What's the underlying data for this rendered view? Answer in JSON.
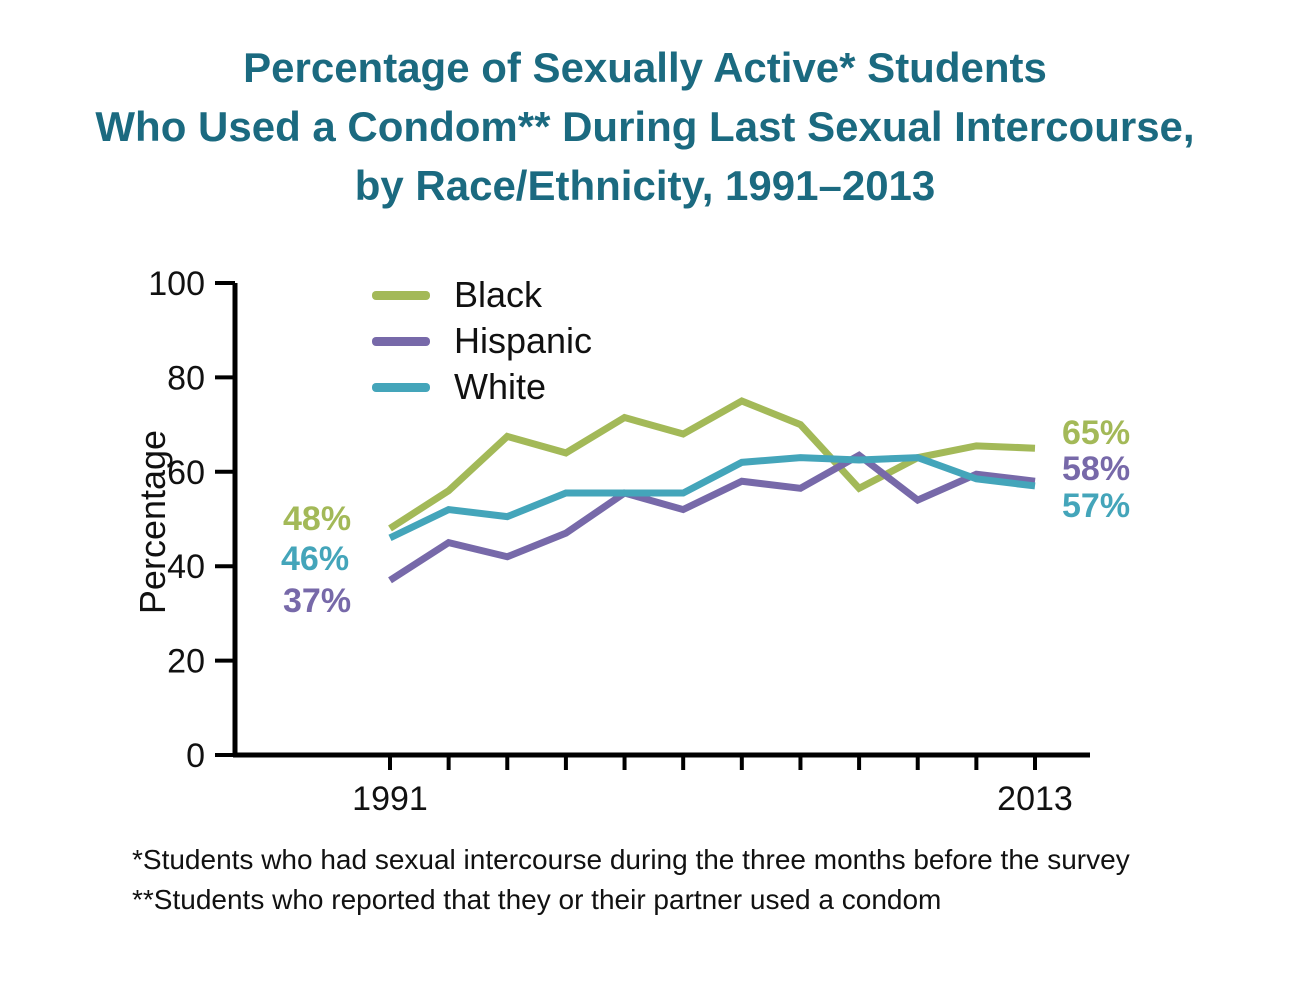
{
  "title": {
    "line1": "Percentage of Sexually Active* Students",
    "line2": "Who Used a Condom** During Last Sexual Intercourse,",
    "line3": "by Race/Ethnicity, 1991–2013"
  },
  "colors": {
    "title": "#1b6a80",
    "axis": "#000000",
    "text": "#111111"
  },
  "footnotes": [
    "*Students who had sexual intercourse during the three months before the survey",
    "**Students who reported that they or their partner used a condom"
  ],
  "chart_data": {
    "type": "line",
    "title": "Percentage of Sexually Active Students Who Used a Condom During Last Sexual Intercourse, by Race/Ethnicity, 1991–2013",
    "xlabel": "",
    "ylabel": "Percentage",
    "ylim": [
      0,
      100
    ],
    "y_ticks": [
      0,
      20,
      40,
      60,
      80,
      100
    ],
    "x": [
      1991,
      1993,
      1995,
      1997,
      1999,
      2001,
      2003,
      2005,
      2007,
      2009,
      2011,
      2013
    ],
    "x_tick_labels": [
      "1991",
      "2013"
    ],
    "grid": false,
    "legend_position": "top-left-inside",
    "series": [
      {
        "name": "Black",
        "color": "#a3b958",
        "values": [
          48,
          56,
          67.5,
          64,
          71.5,
          68,
          75,
          70,
          56.5,
          63,
          65.5,
          65
        ],
        "start_label": "48%",
        "end_label": "65%"
      },
      {
        "name": "Hispanic",
        "color": "#7769a9",
        "values": [
          37,
          45,
          42,
          47,
          55.5,
          52,
          58,
          56.5,
          63.5,
          54,
          59.5,
          58
        ],
        "start_label": "37%",
        "end_label": "58%"
      },
      {
        "name": "White",
        "color": "#44a5ba",
        "values": [
          46,
          52,
          50.5,
          55.5,
          55.5,
          55.5,
          62,
          63,
          62.5,
          63,
          58.5,
          57
        ],
        "start_label": "46%",
        "end_label": "57%"
      }
    ]
  }
}
